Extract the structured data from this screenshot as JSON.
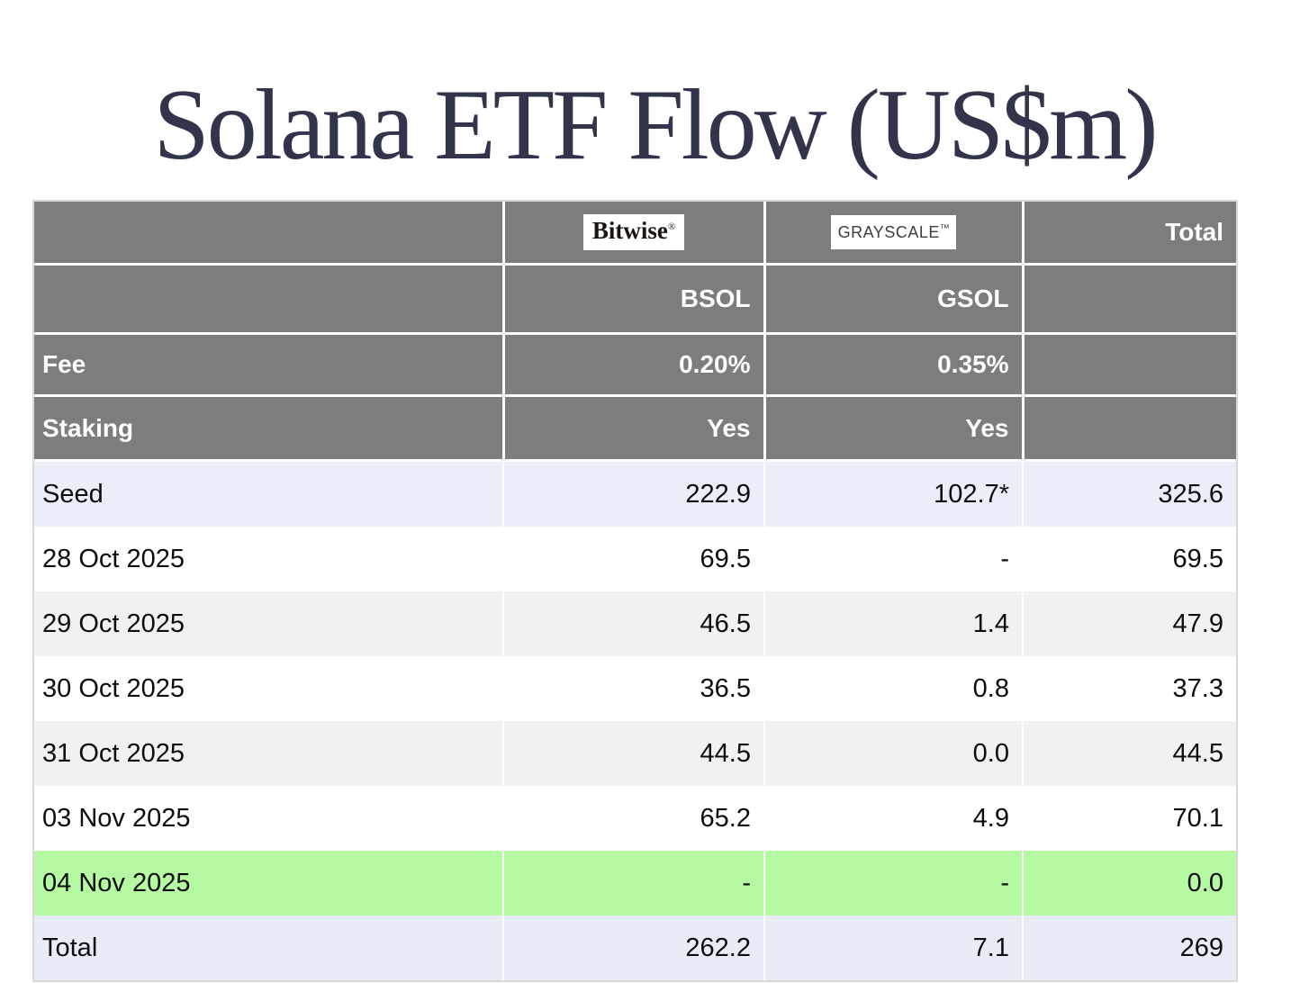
{
  "page": {
    "title": "Solana ETF Flow (US$m)"
  },
  "colors": {
    "header_bg": "#7d7d7d",
    "seed_row_bg": "#e9eef8",
    "alt_row_bg": "#f1f1f0",
    "latest_row_bg": "#b5faa3",
    "total_row_bg": "#e7ecf7",
    "title_color": "#31344a"
  },
  "table": {
    "providers": {
      "bitwise": {
        "name": "Bitwise",
        "mark": "®"
      },
      "grayscale": {
        "name": "GRAYSCALE",
        "mark": "™"
      }
    },
    "header": {
      "total_label": "Total",
      "tickers": {
        "bsol": "BSOL",
        "gsol": "GSOL"
      },
      "fee": {
        "label": "Fee",
        "bsol": "0.20%",
        "gsol": "0.35%"
      },
      "staking": {
        "label": "Staking",
        "bsol": "Yes",
        "gsol": "Yes"
      }
    },
    "rows": [
      {
        "label": "Seed",
        "bsol": "222.9",
        "gsol": "102.7*",
        "total": "325.6"
      },
      {
        "label": "28 Oct 2025",
        "bsol": "69.5",
        "gsol": "-",
        "total": "69.5"
      },
      {
        "label": "29 Oct 2025",
        "bsol": "46.5",
        "gsol": "1.4",
        "total": "47.9"
      },
      {
        "label": "30 Oct 2025",
        "bsol": "36.5",
        "gsol": "0.8",
        "total": "37.3"
      },
      {
        "label": "31 Oct 2025",
        "bsol": "44.5",
        "gsol": "0.0",
        "total": "44.5"
      },
      {
        "label": "03 Nov 2025",
        "bsol": "65.2",
        "gsol": "4.9",
        "total": "70.1"
      },
      {
        "label": "04 Nov 2025",
        "bsol": "-",
        "gsol": "-",
        "total": "0.0"
      },
      {
        "label": "Total",
        "bsol": "262.2",
        "gsol": "7.1",
        "total": "269"
      }
    ]
  },
  "chart_data": {
    "type": "table",
    "title": "Solana ETF Flow (US$m)",
    "columns": [
      "",
      "Bitwise BSOL",
      "Grayscale GSOL",
      "Total"
    ],
    "fees": {
      "BSOL": "0.20%",
      "GSOL": "0.35%"
    },
    "staking": {
      "BSOL": "Yes",
      "GSOL": "Yes"
    },
    "rows": [
      [
        "Seed",
        222.9,
        "102.7*",
        325.6
      ],
      [
        "28 Oct 2025",
        69.5,
        "-",
        69.5
      ],
      [
        "29 Oct 2025",
        46.5,
        1.4,
        47.9
      ],
      [
        "30 Oct 2025",
        36.5,
        0.8,
        37.3
      ],
      [
        "31 Oct 2025",
        44.5,
        0.0,
        44.5
      ],
      [
        "03 Nov 2025",
        65.2,
        4.9,
        70.1
      ],
      [
        "04 Nov 2025",
        "-",
        "-",
        0.0
      ],
      [
        "Total",
        262.2,
        7.1,
        269
      ]
    ]
  }
}
